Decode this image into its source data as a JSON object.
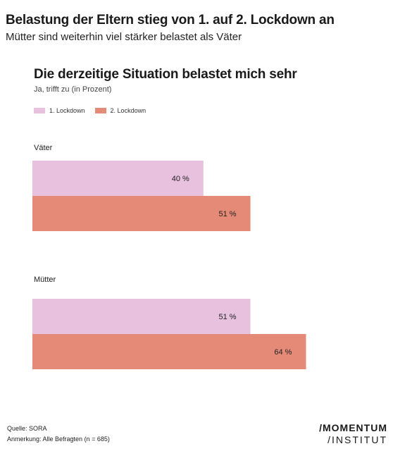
{
  "header": {
    "headline": "Belastung der Eltern stieg von 1. auf 2. Lockdown an",
    "subheadline": "Mütter sind weiterhin viel stärker belastet als Väter"
  },
  "chart_data": {
    "type": "bar",
    "orientation": "horizontal",
    "title": "Die derzeitige Situation belastet mich sehr",
    "subtitle": "Ja, trifft zu (in Prozent)",
    "categories": [
      "Väter",
      "Mütter"
    ],
    "series": [
      {
        "name": "1. Lockdown",
        "color": "#e8c1df",
        "values": [
          40,
          51
        ],
        "labels": [
          "40 %",
          "51 %"
        ]
      },
      {
        "name": "2. Lockdown",
        "color": "#e68a78",
        "values": [
          51,
          64
        ],
        "labels": [
          "51 %",
          "64 %"
        ]
      }
    ],
    "xlim": [
      0,
      64
    ],
    "grid": false,
    "legend": "top-left"
  },
  "footer": {
    "source": "Quelle: SORA",
    "note": "Anmerkung: Alle Befragten (n = 685)"
  },
  "logo": {
    "line1": "/MOMENTUM",
    "line2": "/INSTITUT"
  }
}
